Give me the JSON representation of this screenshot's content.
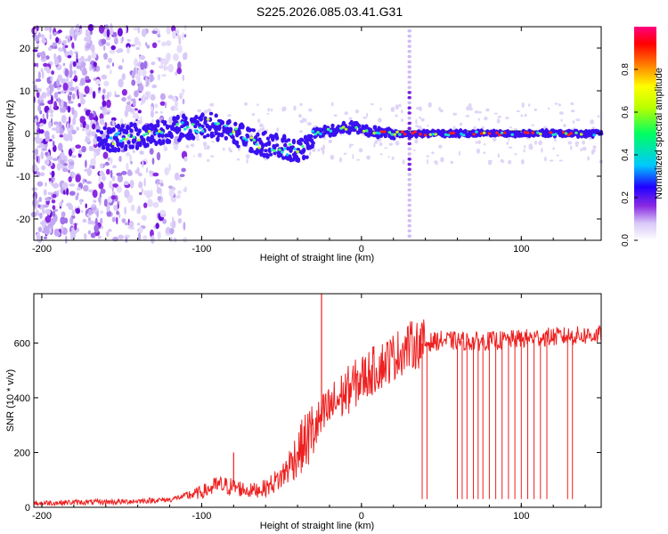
{
  "title": "S225.2026.085.03.41.G31",
  "chart_data": [
    {
      "type": "heatmap",
      "name": "spectrogram",
      "xlabel": "Height of straight line (km)",
      "ylabel": "Frequency (Hz)",
      "xlim": [
        -205,
        150
      ],
      "ylim": [
        -25,
        25
      ],
      "xticks": [
        -200,
        -100,
        0,
        100
      ],
      "yticks": [
        -20,
        -10,
        0,
        10,
        20
      ],
      "colorbar": {
        "label": "Normalized spectral amplitude",
        "range": [
          0,
          1
        ],
        "ticks": [
          "0.0",
          "0.2",
          "0.4",
          "0.6",
          "0.8"
        ],
        "colors": [
          "#ffffff",
          "#d8c8f8",
          "#8a2be2",
          "#2000ff",
          "#00c8ff",
          "#00ff60",
          "#ffff00",
          "#ff8000",
          "#ff0000",
          "#ff0080"
        ]
      },
      "ridge": [
        {
          "x": -165,
          "y": -1.5
        },
        {
          "x": -150,
          "y": -1.0
        },
        {
          "x": -130,
          "y": 0.0
        },
        {
          "x": -110,
          "y": 1.5
        },
        {
          "x": -95,
          "y": 2.0
        },
        {
          "x": -80,
          "y": 0.0
        },
        {
          "x": -65,
          "y": -2.0
        },
        {
          "x": -50,
          "y": -3.5
        },
        {
          "x": -40,
          "y": -4.0
        },
        {
          "x": -33,
          "y": -3.0
        },
        {
          "x": -30,
          "y": 0.0
        },
        {
          "x": -15,
          "y": 1.0
        },
        {
          "x": -5,
          "y": 1.5
        },
        {
          "x": 5,
          "y": 0.5
        },
        {
          "x": 20,
          "y": 0.0
        },
        {
          "x": 60,
          "y": 0.0
        },
        {
          "x": 100,
          "y": 0.0
        },
        {
          "x": 150,
          "y": 0.0
        }
      ],
      "spike_x": 30
    },
    {
      "type": "line",
      "name": "snr",
      "xlabel": "Height of straight line (km)",
      "ylabel": "SNR (10 * v/v)",
      "xlim": [
        -205,
        150
      ],
      "ylim": [
        0,
        780
      ],
      "xticks": [
        -200,
        -100,
        0,
        100
      ],
      "yticks": [
        0,
        200,
        400,
        600
      ],
      "color": "#ee2020",
      "series": [
        {
          "x": -205,
          "y": 15
        },
        {
          "x": -180,
          "y": 18
        },
        {
          "x": -150,
          "y": 20
        },
        {
          "x": -120,
          "y": 28
        },
        {
          "x": -100,
          "y": 55
        },
        {
          "x": -90,
          "y": 80
        },
        {
          "x": -80,
          "y": 75
        },
        {
          "x": -70,
          "y": 60
        },
        {
          "x": -60,
          "y": 70
        },
        {
          "x": -50,
          "y": 110
        },
        {
          "x": -40,
          "y": 200
        },
        {
          "x": -30,
          "y": 280
        },
        {
          "x": -20,
          "y": 360
        },
        {
          "x": -10,
          "y": 420
        },
        {
          "x": 0,
          "y": 470
        },
        {
          "x": 10,
          "y": 510
        },
        {
          "x": 20,
          "y": 550
        },
        {
          "x": 30,
          "y": 590
        },
        {
          "x": 40,
          "y": 600
        },
        {
          "x": 50,
          "y": 610
        },
        {
          "x": 70,
          "y": 605
        },
        {
          "x": 90,
          "y": 610
        },
        {
          "x": 110,
          "y": 620
        },
        {
          "x": 130,
          "y": 625
        },
        {
          "x": 150,
          "y": 630
        }
      ],
      "spikes": [
        {
          "x": -25,
          "y": 780
        },
        {
          "x": -80,
          "y": 200
        }
      ],
      "dropouts": [
        38,
        41,
        60,
        63,
        66,
        70,
        73,
        76,
        80,
        84,
        88,
        92,
        96,
        100,
        104,
        108,
        112,
        116,
        129,
        132
      ]
    }
  ]
}
